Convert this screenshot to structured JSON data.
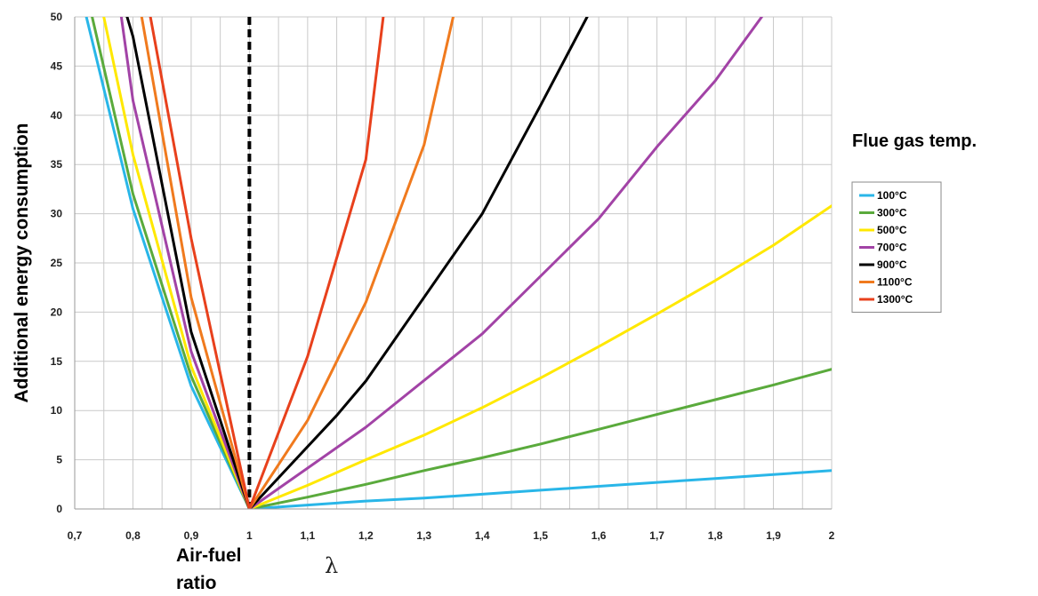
{
  "chart_data": {
    "type": "line",
    "title": "",
    "xlabel": "Air-fuel ratio",
    "xlabel_lines": [
      "Air-fuel",
      "ratio"
    ],
    "xsymbol": "λ",
    "ylabel": "Additional energy consumption",
    "xlim": [
      0.7,
      2.0
    ],
    "ylim": [
      0,
      50
    ],
    "xticks": [
      0.7,
      0.8,
      0.9,
      1.0,
      1.1,
      1.2,
      1.3,
      1.4,
      1.5,
      1.6,
      1.7,
      1.8,
      1.9,
      2.0
    ],
    "xtick_labels": [
      "0,7",
      "0,8",
      "0,9",
      "1",
      "1,1",
      "1,2",
      "1,3",
      "1,4",
      "1,5",
      "1,6",
      "1,7",
      "1,8",
      "1,9",
      "2"
    ],
    "yticks": [
      0,
      5,
      10,
      15,
      20,
      25,
      30,
      35,
      40,
      45,
      50
    ],
    "ytick_labels": [
      "0",
      "5",
      "10",
      "15",
      "20",
      "25",
      "30",
      "35",
      "40",
      "45",
      "50"
    ],
    "grid": true,
    "reference_line": {
      "x": 1.0,
      "style": "dashed",
      "color": "#000000"
    },
    "legend_title": "Flue gas temp.",
    "legend_position": "right",
    "series": [
      {
        "name": "100°C",
        "color": "#29b6e8",
        "x": [
          0.72,
          0.8,
          0.9,
          1.0,
          1.1,
          1.2,
          1.3,
          1.4,
          1.5,
          1.6,
          1.7,
          1.8,
          1.9,
          2.0
        ],
        "y": [
          50,
          30.5,
          12.5,
          0,
          0.4,
          0.8,
          1.1,
          1.5,
          1.9,
          2.3,
          2.7,
          3.1,
          3.5,
          3.9
        ]
      },
      {
        "name": "300°C",
        "color": "#5aaa3c",
        "x": [
          0.73,
          0.8,
          0.9,
          1.0,
          1.1,
          1.2,
          1.3,
          1.4,
          1.5,
          1.6,
          1.7,
          1.8,
          1.9,
          2.0
        ],
        "y": [
          50,
          32,
          13.5,
          0,
          1.2,
          2.5,
          3.9,
          5.2,
          6.6,
          8.1,
          9.6,
          11.1,
          12.6,
          14.2
        ]
      },
      {
        "name": "500°C",
        "color": "#ffe800",
        "x": [
          0.75,
          0.8,
          0.9,
          1.0,
          1.1,
          1.2,
          1.3,
          1.4,
          1.5,
          1.6,
          1.7,
          1.8,
          1.9,
          2.0
        ],
        "y": [
          50,
          36,
          14.5,
          0,
          2.4,
          5,
          7.5,
          10.3,
          13.3,
          16.5,
          19.8,
          23.2,
          26.8,
          30.8
        ]
      },
      {
        "name": "700°C",
        "color": "#a243a6",
        "x": [
          0.78,
          0.8,
          0.9,
          1.0,
          1.2,
          1.4,
          1.6,
          1.7,
          1.8,
          1.88
        ],
        "y": [
          50,
          41.5,
          16,
          0,
          8.3,
          17.8,
          29.5,
          36.8,
          43.5,
          50
        ]
      },
      {
        "name": "900°C",
        "color": "#000000",
        "x": [
          0.79,
          0.8,
          0.9,
          1.0,
          1.15,
          1.2,
          1.4,
          1.5,
          1.58
        ],
        "y": [
          50,
          48,
          18,
          0,
          9.5,
          13,
          30,
          41,
          50
        ]
      },
      {
        "name": "1100°C",
        "color": "#f07a1e",
        "x": [
          0.815,
          0.9,
          1.0,
          1.1,
          1.2,
          1.3,
          1.35
        ],
        "y": [
          50,
          21.5,
          0,
          9,
          21,
          37,
          50
        ]
      },
      {
        "name": "1300°C",
        "color": "#e8401c",
        "x": [
          0.83,
          0.9,
          1.0,
          1.1,
          1.2,
          1.23
        ],
        "y": [
          50,
          27.5,
          0,
          15.5,
          35.5,
          50
        ]
      }
    ]
  }
}
